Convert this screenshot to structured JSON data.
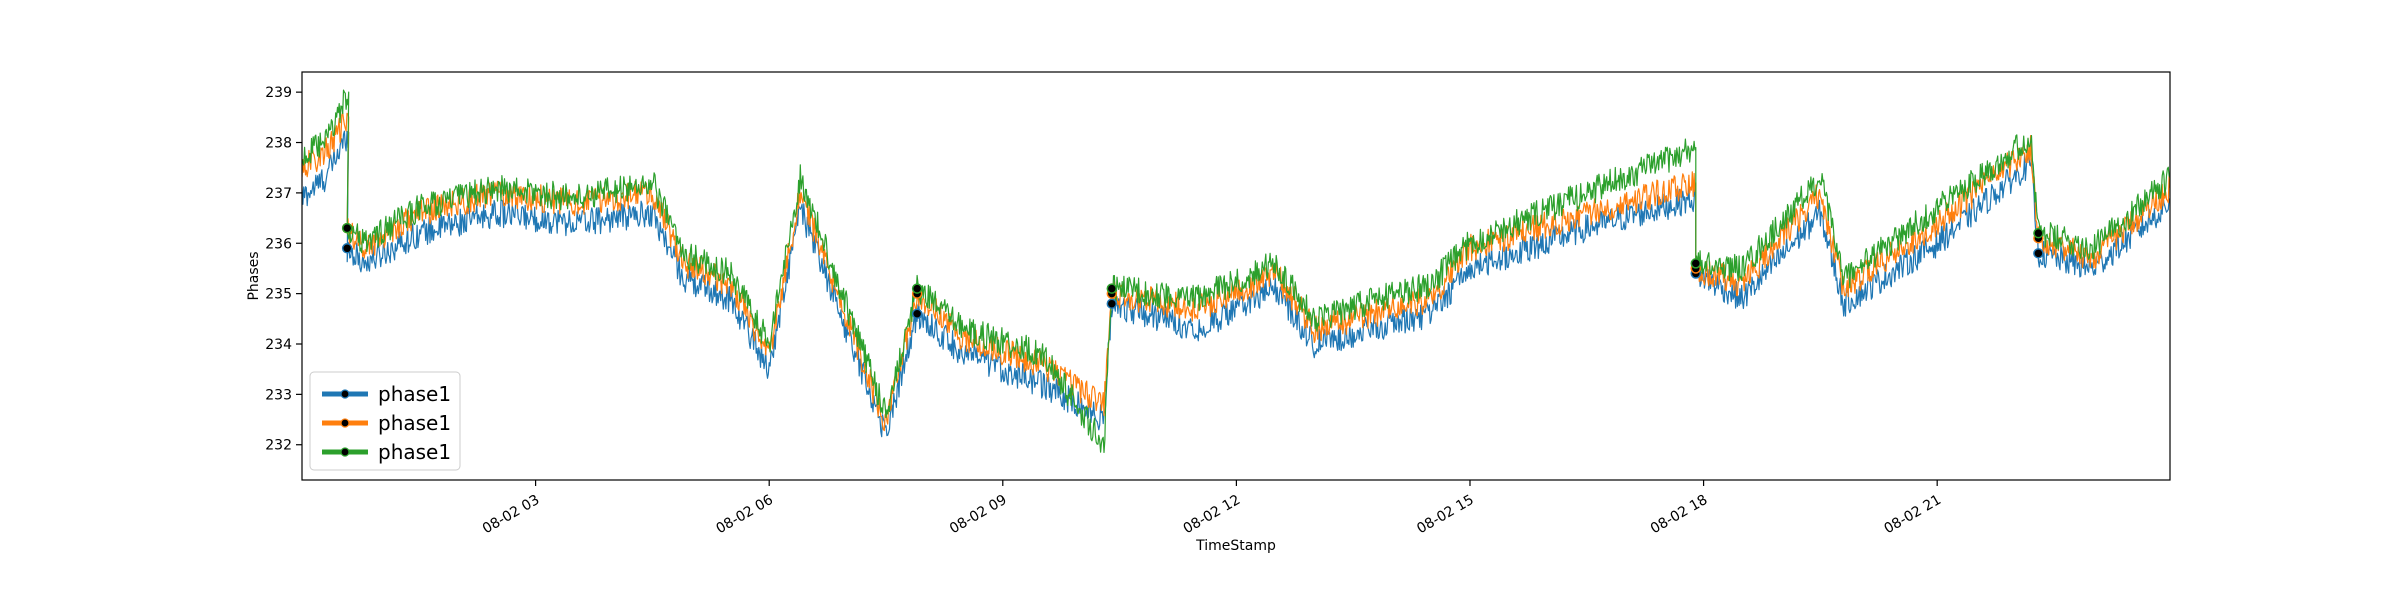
{
  "chart_data": {
    "type": "line",
    "title": "",
    "xlabel": "TimeStamp",
    "ylabel": "Phases",
    "xlim": [
      "08-02 00:00",
      "08-02 23:59"
    ],
    "ylim": [
      231.3,
      239.4
    ],
    "grid": false,
    "legend_placement": "lower-left",
    "x_ticks": [
      {
        "hour": 3,
        "label": "08-02 03"
      },
      {
        "hour": 6,
        "label": "08-02 06"
      },
      {
        "hour": 9,
        "label": "08-02 09"
      },
      {
        "hour": 12,
        "label": "08-02 12"
      },
      {
        "hour": 15,
        "label": "08-02 15"
      },
      {
        "hour": 18,
        "label": "08-02 18"
      },
      {
        "hour": 21,
        "label": "08-02 21"
      }
    ],
    "y_ticks": [
      232,
      233,
      234,
      235,
      236,
      237,
      238,
      239
    ],
    "x_unit": "hours since 08-02 00:00",
    "series": [
      {
        "name": "phase1",
        "color": "#1f77b4",
        "points": [
          [
            0,
            236.9
          ],
          [
            0.3,
            237.3
          ],
          [
            0.6,
            238.2
          ],
          [
            0.58,
            235.9
          ],
          [
            0.8,
            235.6
          ],
          [
            1.5,
            236.2
          ],
          [
            2.5,
            236.6
          ],
          [
            3.5,
            236.4
          ],
          [
            4.5,
            236.6
          ],
          [
            4.9,
            235.3
          ],
          [
            5.5,
            234.9
          ],
          [
            6.0,
            233.5
          ],
          [
            6.4,
            236.7
          ],
          [
            7.5,
            232.2
          ],
          [
            7.9,
            234.6
          ],
          [
            8.5,
            233.8
          ],
          [
            9.5,
            233.2
          ],
          [
            10.3,
            232.5
          ],
          [
            10.4,
            234.8
          ],
          [
            11.5,
            234.3
          ],
          [
            12.5,
            235.1
          ],
          [
            13.0,
            234.0
          ],
          [
            14.5,
            234.6
          ],
          [
            15.0,
            235.5
          ],
          [
            16.5,
            236.3
          ],
          [
            17.9,
            236.9
          ],
          [
            17.9,
            235.4
          ],
          [
            18.5,
            234.9
          ],
          [
            19.5,
            236.6
          ],
          [
            19.8,
            234.8
          ],
          [
            21.0,
            236.0
          ],
          [
            22.2,
            237.6
          ],
          [
            22.3,
            235.8
          ],
          [
            23.0,
            235.5
          ],
          [
            23.99,
            236.8
          ]
        ]
      },
      {
        "name": "phase1",
        "color": "#ff7f0e",
        "points": [
          [
            0,
            237.5
          ],
          [
            0.3,
            237.8
          ],
          [
            0.6,
            238.5
          ],
          [
            0.58,
            236.3
          ],
          [
            0.8,
            235.9
          ],
          [
            1.5,
            236.6
          ],
          [
            2.5,
            237.0
          ],
          [
            3.5,
            236.8
          ],
          [
            4.5,
            237.0
          ],
          [
            4.9,
            235.6
          ],
          [
            5.5,
            235.2
          ],
          [
            6.0,
            233.8
          ],
          [
            6.4,
            237.0
          ],
          [
            7.5,
            232.4
          ],
          [
            7.9,
            235.0
          ],
          [
            8.5,
            234.1
          ],
          [
            9.5,
            233.6
          ],
          [
            10.3,
            232.8
          ],
          [
            10.4,
            235.0
          ],
          [
            11.5,
            234.7
          ],
          [
            12.5,
            235.4
          ],
          [
            13.0,
            234.3
          ],
          [
            14.5,
            234.9
          ],
          [
            15.0,
            235.9
          ],
          [
            16.5,
            236.6
          ],
          [
            17.9,
            237.2
          ],
          [
            17.9,
            235.5
          ],
          [
            18.5,
            235.2
          ],
          [
            19.5,
            237.0
          ],
          [
            19.8,
            235.1
          ],
          [
            21.0,
            236.4
          ],
          [
            22.2,
            237.9
          ],
          [
            22.3,
            236.1
          ],
          [
            23.0,
            235.7
          ],
          [
            23.99,
            237.1
          ]
        ]
      },
      {
        "name": "phase1",
        "color": "#2ca02c",
        "points": [
          [
            0,
            237.7
          ],
          [
            0.3,
            238.0
          ],
          [
            0.6,
            239.0
          ],
          [
            0.58,
            236.3
          ],
          [
            0.8,
            236.0
          ],
          [
            1.5,
            236.7
          ],
          [
            2.5,
            237.1
          ],
          [
            3.5,
            236.9
          ],
          [
            4.5,
            237.2
          ],
          [
            4.9,
            235.8
          ],
          [
            5.5,
            235.4
          ],
          [
            6.0,
            234.0
          ],
          [
            6.4,
            237.3
          ],
          [
            7.5,
            232.6
          ],
          [
            7.9,
            235.1
          ],
          [
            8.5,
            234.3
          ],
          [
            9.5,
            233.8
          ],
          [
            10.3,
            232.0
          ],
          [
            10.4,
            235.1
          ],
          [
            11.5,
            234.9
          ],
          [
            12.5,
            235.6
          ],
          [
            13.0,
            234.5
          ],
          [
            14.5,
            235.2
          ],
          [
            15.0,
            236.0
          ],
          [
            16.5,
            237.0
          ],
          [
            17.9,
            237.9
          ],
          [
            17.9,
            235.6
          ],
          [
            18.5,
            235.5
          ],
          [
            19.5,
            237.3
          ],
          [
            19.8,
            235.3
          ],
          [
            21.0,
            236.7
          ],
          [
            22.2,
            238.1
          ],
          [
            22.3,
            236.2
          ],
          [
            23.0,
            235.9
          ],
          [
            23.99,
            237.3
          ]
        ]
      }
    ],
    "markers": [
      {
        "x": 0.58,
        "values": [
          235.9,
          236.3,
          236.3
        ]
      },
      {
        "x": 7.9,
        "values": [
          234.6,
          235.0,
          235.1
        ]
      },
      {
        "x": 10.4,
        "values": [
          234.8,
          235.0,
          235.1
        ]
      },
      {
        "x": 17.9,
        "values": [
          235.4,
          235.5,
          235.6
        ]
      },
      {
        "x": 22.3,
        "values": [
          235.8,
          236.1,
          236.2
        ]
      }
    ],
    "legend": [
      {
        "label": "phase1",
        "color": "#1f77b4"
      },
      {
        "label": "phase1",
        "color": "#ff7f0e"
      },
      {
        "label": "phase1",
        "color": "#2ca02c"
      }
    ]
  }
}
